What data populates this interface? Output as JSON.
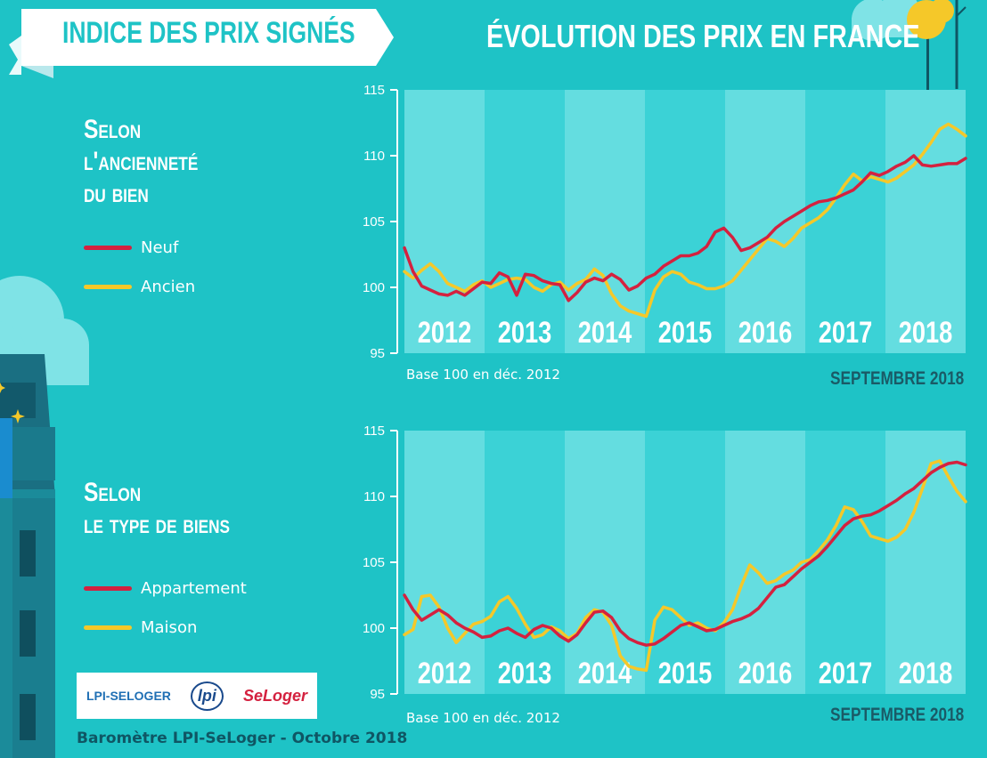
{
  "header": {
    "banner_title": "INDICE DES PRIX SIGNÉS",
    "main_title": "ÉVOLUTION DES PRIX EN FRANCE"
  },
  "colors": {
    "background": "#1ec3c6",
    "band_light": "#64dde0",
    "band_dark": "#3bd2d6",
    "red_series": "#d4213f",
    "yellow_series": "#f5c829",
    "banner_bg": "#ffffff",
    "dark_text": "#1a5a66"
  },
  "sections": [
    {
      "heading_lines": [
        "Selon",
        "l'ancienneté",
        "du bien"
      ],
      "legend": [
        "Neuf",
        "Ancien"
      ],
      "base_note": "Base 100 en déc. 2012",
      "date_label": "SEPTEMBRE 2018"
    },
    {
      "heading_lines": [
        "Selon",
        "le type de biens"
      ],
      "legend": [
        "Appartement",
        "Maison"
      ],
      "base_note": "Base 100 en déc. 2012",
      "date_label": "SEPTEMBRE 2018"
    }
  ],
  "footer": {
    "text": "Baromètre LPI-SeLoger - Octobre 2018",
    "logos": [
      "LPI-SELOGER",
      "lpi",
      "SeLoger"
    ]
  },
  "chart_data": [
    {
      "type": "line",
      "x_label_years": [
        "2012",
        "2013",
        "2014",
        "2015",
        "2016",
        "2017",
        "2018"
      ],
      "ylim": [
        95,
        115
      ],
      "yticks": [
        95,
        100,
        105,
        110,
        115
      ],
      "series": [
        {
          "name": "Neuf",
          "values": [
            103.0,
            101.2,
            100.1,
            99.8,
            99.5,
            99.4,
            99.7,
            99.4,
            99.9,
            100.4,
            100.3,
            101.1,
            100.8,
            99.4,
            101.0,
            100.9,
            100.5,
            100.3,
            100.2,
            99.0,
            99.6,
            100.4,
            100.7,
            100.5,
            101.0,
            100.6,
            99.8,
            100.1,
            100.7,
            101.0,
            101.6,
            102.0,
            102.4,
            102.4,
            102.6,
            103.1,
            104.2,
            104.5,
            103.8,
            102.8,
            103.0,
            103.4,
            103.8,
            104.5,
            105.0,
            105.4,
            105.8,
            106.2,
            106.5,
            106.6,
            106.8,
            107.1,
            107.4,
            108.0,
            108.7,
            108.5,
            108.8,
            109.2,
            109.5,
            110.0,
            109.3,
            109.2,
            109.3,
            109.4,
            109.4,
            109.8
          ]
        },
        {
          "name": "Ancien",
          "values": [
            101.2,
            100.7,
            101.3,
            101.8,
            101.2,
            100.3,
            100.0,
            99.7,
            100.2,
            100.5,
            100.0,
            100.3,
            100.6,
            100.7,
            100.6,
            100.0,
            99.7,
            100.2,
            100.4,
            99.8,
            100.3,
            100.6,
            101.4,
            100.9,
            99.5,
            98.6,
            98.2,
            98.0,
            97.8,
            99.8,
            100.8,
            101.2,
            101.0,
            100.4,
            100.2,
            99.9,
            99.9,
            100.1,
            100.5,
            101.3,
            102.1,
            102.9,
            103.7,
            103.5,
            103.1,
            103.7,
            104.5,
            104.9,
            105.3,
            105.9,
            106.8,
            107.8,
            108.6,
            108.1,
            108.4,
            108.2,
            108.0,
            108.3,
            108.8,
            109.3,
            110.1,
            111.0,
            112.0,
            112.4,
            112.0,
            111.5
          ]
        }
      ]
    },
    {
      "type": "line",
      "x_label_years": [
        "2012",
        "2013",
        "2014",
        "2015",
        "2016",
        "2017",
        "2018"
      ],
      "ylim": [
        95,
        115
      ],
      "yticks": [
        95,
        100,
        105,
        110,
        115
      ],
      "series": [
        {
          "name": "Appartement",
          "values": [
            102.5,
            101.4,
            100.6,
            101.0,
            101.4,
            101.0,
            100.4,
            100.0,
            99.7,
            99.3,
            99.4,
            99.8,
            100.0,
            99.6,
            99.3,
            99.9,
            100.2,
            100.0,
            99.4,
            99.0,
            99.5,
            100.4,
            101.2,
            101.3,
            100.8,
            99.8,
            99.2,
            98.9,
            98.7,
            98.8,
            99.2,
            99.7,
            100.2,
            100.4,
            100.1,
            99.8,
            99.9,
            100.2,
            100.5,
            100.7,
            101.0,
            101.5,
            102.3,
            103.1,
            103.3,
            103.9,
            104.5,
            105.0,
            105.5,
            106.2,
            107.0,
            107.8,
            108.3,
            108.5,
            108.6,
            108.9,
            109.3,
            109.7,
            110.2,
            110.6,
            111.2,
            111.8,
            112.2,
            112.5,
            112.6,
            112.4
          ]
        },
        {
          "name": "Maison",
          "values": [
            99.5,
            99.9,
            102.4,
            102.5,
            101.6,
            100.0,
            98.9,
            99.6,
            100.3,
            100.5,
            100.9,
            102.0,
            102.4,
            101.5,
            100.3,
            99.3,
            99.5,
            100.1,
            99.8,
            99.2,
            99.6,
            100.8,
            101.4,
            101.2,
            100.2,
            97.9,
            97.1,
            96.9,
            96.8,
            100.6,
            101.6,
            101.4,
            100.8,
            100.2,
            100.4,
            100.0,
            99.8,
            100.4,
            101.4,
            103.2,
            104.8,
            104.2,
            103.4,
            103.6,
            104.1,
            104.4,
            105.0,
            105.2,
            105.9,
            106.7,
            107.8,
            109.2,
            109.0,
            108.1,
            107.0,
            106.8,
            106.6,
            106.9,
            107.5,
            108.8,
            110.6,
            112.5,
            112.7,
            111.5,
            110.4,
            109.6
          ]
        }
      ]
    }
  ]
}
